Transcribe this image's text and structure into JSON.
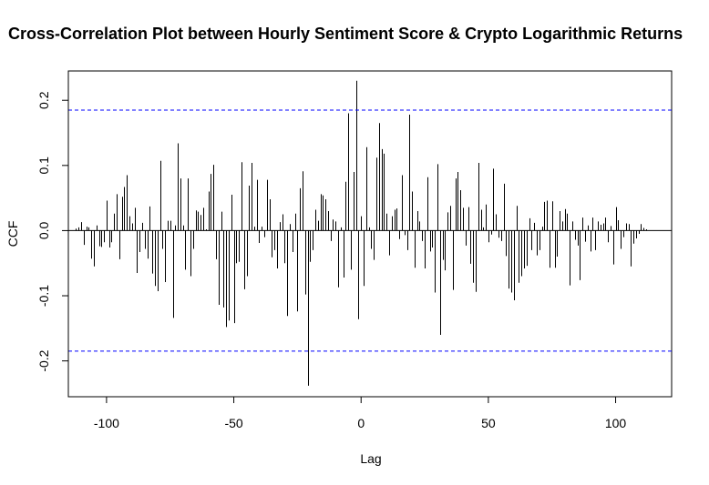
{
  "chart_data": {
    "type": "bar",
    "title": "Cross-Correlation Plot between Hourly Sentiment Score & Crypto Logarithmic Returns",
    "xlabel": "Lag",
    "ylabel": "CCF",
    "xlim": [
      -115,
      122
    ],
    "ylim": [
      -0.255,
      0.245
    ],
    "x_ticks": [
      -100,
      -50,
      0,
      50,
      100
    ],
    "y_ticks": [
      -0.2,
      -0.1,
      0.0,
      0.1,
      0.2
    ],
    "x_tick_labels": [
      "-100",
      "-50",
      "0",
      "50",
      "100"
    ],
    "y_tick_labels": [
      "-0.2",
      "-0.1",
      "0.0",
      "0.1",
      "0.2"
    ],
    "confidence_limits": [
      0.185,
      -0.185
    ],
    "lag_start": -112,
    "values": [
      0.003,
      0.005,
      0.013,
      -0.022,
      0.006,
      0.005,
      -0.043,
      -0.055,
      0.008,
      -0.024,
      -0.025,
      -0.018,
      0.046,
      -0.026,
      -0.018,
      0.026,
      0.056,
      -0.044,
      0.052,
      0.067,
      0.085,
      0.022,
      0.011,
      0.035,
      -0.065,
      -0.033,
      0.012,
      -0.028,
      -0.043,
      0.037,
      -0.066,
      -0.085,
      -0.093,
      0.107,
      -0.028,
      -0.079,
      0.015,
      0.015,
      -0.134,
      0.008,
      0.134,
      0.08,
      0.008,
      -0.06,
      0.08,
      -0.07,
      -0.028,
      0.031,
      0.029,
      0.024,
      0.035,
      0.002,
      0.06,
      0.087,
      0.101,
      -0.044,
      -0.114,
      0.029,
      -0.118,
      -0.148,
      -0.138,
      0.055,
      -0.142,
      -0.05,
      -0.048,
      0.105,
      -0.09,
      -0.07,
      0.069,
      0.104,
      0.006,
      0.078,
      -0.019,
      0.006,
      -0.01,
      0.078,
      0.048,
      -0.041,
      -0.03,
      -0.058,
      0.013,
      0.025,
      -0.05,
      -0.131,
      0.01,
      -0.033,
      0.026,
      -0.124,
      0.065,
      0.091,
      -0.098,
      -0.238,
      -0.048,
      -0.03,
      0.032,
      0.015,
      0.056,
      0.054,
      0.048,
      0.03,
      -0.016,
      0.017,
      0.014,
      -0.087,
      0.005,
      -0.072,
      0.075,
      0.18,
      -0.06,
      0.09,
      0.23,
      -0.136,
      0.022,
      -0.085,
      0.128,
      0.005,
      -0.028,
      -0.045,
      0.112,
      0.165,
      0.125,
      0.118,
      0.026,
      -0.038,
      0.022,
      0.032,
      0.034,
      -0.013,
      0.085,
      -0.007,
      -0.03,
      0.178,
      0.06,
      -0.057,
      0.03,
      0.014,
      -0.016,
      -0.058,
      0.082,
      -0.032,
      -0.026,
      -0.095,
      0.102,
      -0.16,
      -0.045,
      -0.061,
      0.028,
      0.038,
      -0.091,
      0.08,
      0.09,
      0.062,
      0.035,
      -0.023,
      0.036,
      -0.051,
      -0.08,
      -0.094,
      0.104,
      0.032,
      0.005,
      0.04,
      -0.018,
      -0.006,
      0.095,
      0.025,
      -0.011,
      -0.016,
      0.072,
      -0.039,
      -0.089,
      -0.095,
      -0.107,
      0.038,
      -0.08,
      -0.07,
      -0.058,
      -0.054,
      0.019,
      -0.03,
      0.012,
      -0.038,
      -0.03,
      0.006,
      0.044,
      0.046,
      -0.057,
      0.045,
      -0.057,
      -0.04,
      0.03,
      0.014,
      0.033,
      0.026,
      -0.084,
      0.014,
      -0.014,
      -0.023,
      -0.076,
      0.02,
      -0.017,
      0.008,
      -0.032,
      0.02,
      -0.03,
      0.014,
      0.009,
      0.011,
      0.02,
      -0.018,
      0.007,
      -0.052,
      0.036,
      0.016,
      -0.028,
      -0.01,
      0.011,
      0.01,
      -0.055,
      -0.02,
      -0.012,
      -0.005,
      0.01,
      0.004,
      0.002
    ]
  }
}
